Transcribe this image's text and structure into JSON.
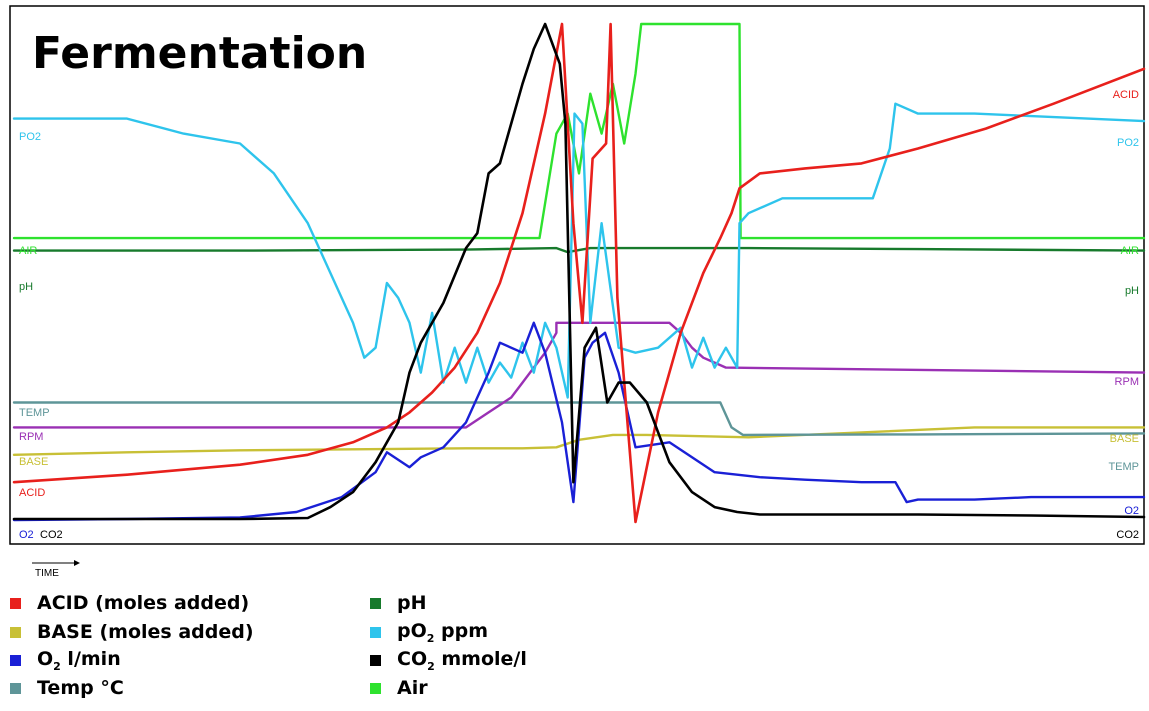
{
  "chart_data": {
    "type": "line",
    "title": "Fermentation",
    "xlabel": "TIME",
    "ylabel": "",
    "grid": false,
    "legend_position": "bottom",
    "xlim": [
      0,
      100
    ],
    "ylim": [
      0,
      100
    ],
    "series": [
      {
        "name": "ACID",
        "legend": "ACID (moles added)",
        "color": "#e8201c",
        "x": [
          0,
          10,
          20,
          26,
          30,
          33,
          35,
          37,
          39,
          41,
          43,
          45,
          47,
          48.5,
          49.5,
          50.3,
          51.2,
          52.4,
          52.8,
          53.4,
          55,
          57,
          59,
          61,
          62.5,
          63.5,
          64.2,
          66,
          70,
          75,
          80,
          86,
          92,
          100
        ],
        "y": [
          8,
          9.5,
          11.5,
          13.5,
          16,
          19,
          22,
          26,
          31,
          38,
          48,
          62,
          82,
          100,
          60,
          40,
          73,
          76,
          100,
          45,
          0,
          22,
          38,
          50,
          57,
          62,
          67,
          70,
          71,
          72,
          75,
          79,
          84,
          91
        ]
      },
      {
        "name": "BASE",
        "legend": "BASE (moles added)",
        "color": "#c8c036",
        "x": [
          0,
          10,
          20,
          30,
          40,
          45,
          48,
          50,
          53,
          56,
          65,
          75,
          85,
          100
        ],
        "y": [
          13.5,
          14,
          14.4,
          14.6,
          14.8,
          14.8,
          15,
          16.5,
          17.5,
          17.5,
          17,
          18,
          19,
          19
        ]
      },
      {
        "name": "O2",
        "legend": "O2 l/min",
        "color": "#1a20d6",
        "x": [
          0,
          10,
          20,
          25,
          29,
          32,
          33,
          35,
          36,
          38,
          40,
          42,
          43,
          45,
          46,
          47,
          48.5,
          49.5,
          50.5,
          51.2,
          52.3,
          53.5,
          55,
          58,
          62,
          66,
          70,
          75,
          78,
          79,
          80,
          85,
          90,
          100
        ],
        "y": [
          0.4,
          0.6,
          0.9,
          2,
          5,
          10,
          14,
          11,
          13,
          15,
          20,
          30,
          36,
          34,
          40,
          34,
          20,
          4,
          33,
          36,
          38,
          30,
          15,
          16,
          10,
          9,
          8.5,
          8,
          8,
          4,
          4.5,
          4.5,
          5,
          5
        ]
      },
      {
        "name": "TEMP",
        "legend": "Temp °C",
        "color": "#5e9598",
        "x": [
          0,
          20,
          40,
          50,
          55,
          60,
          62.5,
          63.5,
          64.5,
          80,
          100
        ],
        "y": [
          24,
          24,
          24,
          24,
          24,
          24,
          24,
          19,
          17.5,
          17.6,
          17.8
        ]
      },
      {
        "name": "RPM",
        "legend": "RPM",
        "color": "#9a30b4",
        "x": [
          0,
          40,
          42,
          44,
          45,
          46,
          47,
          48,
          48,
          58,
          59,
          60,
          61,
          62,
          63,
          100
        ],
        "y": [
          19,
          19,
          22,
          25,
          28,
          31,
          34,
          38,
          40,
          40,
          38,
          35,
          33,
          32,
          31,
          30
        ]
      },
      {
        "name": "pH",
        "legend": "pH",
        "color": "#177a2c",
        "x": [
          0,
          20,
          40,
          48,
          49,
          51,
          55,
          65,
          80,
          100
        ],
        "y": [
          54.5,
          54.5,
          54.7,
          55,
          54.2,
          55,
          55,
          55,
          54.8,
          54.5
        ]
      },
      {
        "name": "PO2",
        "legend": "pO2 ppm",
        "color": "#2ec4ec",
        "x": [
          0,
          10,
          15,
          20,
          23,
          26,
          28,
          30,
          31,
          32,
          33,
          34,
          35,
          36,
          37,
          38,
          39,
          40,
          41,
          42,
          43,
          44,
          45,
          46,
          47,
          48,
          49,
          49.6,
          50.3,
          51,
          52,
          53.5,
          55,
          57,
          59,
          60,
          61,
          62,
          63,
          64,
          64.2,
          65,
          68,
          73,
          76,
          77.5,
          78,
          80,
          85,
          90,
          100
        ],
        "y": [
          81,
          81,
          78,
          76,
          70,
          60,
          50,
          40,
          33,
          35,
          48,
          45,
          40,
          30,
          42,
          28,
          35,
          28,
          35,
          28,
          32,
          29,
          36,
          30,
          40,
          35,
          25,
          82,
          80,
          40,
          60,
          35,
          34,
          35,
          39,
          31,
          37,
          31,
          35,
          31,
          60,
          62,
          65,
          65,
          65,
          75,
          84,
          82,
          82,
          81.5,
          80.5
        ]
      },
      {
        "name": "CO2",
        "legend": "CO2 mmole/l",
        "color": "#000000",
        "x": [
          0,
          10,
          20,
          26,
          28,
          30,
          32,
          34,
          35,
          36,
          38,
          40,
          41,
          42,
          43,
          44,
          45,
          46,
          47,
          48.3,
          48.8,
          49.5,
          50.5,
          51.5,
          52.5,
          53.5,
          54.5,
          56,
          58,
          60,
          62,
          64,
          66,
          70,
          75,
          80,
          85,
          90,
          100
        ],
        "y": [
          0.6,
          0.6,
          0.6,
          0.8,
          3,
          6,
          12,
          20,
          30,
          36,
          44,
          55,
          58,
          70,
          72,
          80,
          88,
          95,
          100,
          92,
          80,
          8,
          35,
          39,
          24,
          28,
          28,
          24,
          12,
          6,
          3,
          2,
          1.5,
          1.5,
          1.5,
          1.5,
          1.4,
          1.3,
          1
        ]
      },
      {
        "name": "AIR",
        "legend": "Air",
        "color": "#2ee22e",
        "x": [
          0,
          20,
          40,
          46.5,
          47,
          48,
          49,
          50,
          51,
          52,
          53,
          54,
          55,
          55.5,
          55.6,
          64.2,
          64.3,
          65,
          80,
          100
        ],
        "y": [
          57,
          57,
          57,
          57,
          64,
          78,
          82,
          70,
          86,
          78,
          88,
          76,
          90,
          100,
          100,
          100,
          57,
          57,
          57,
          57
        ]
      }
    ],
    "series_labels": {
      "left": [
        "PO2",
        "AIR",
        "pH",
        "TEMP",
        "RPM",
        "BASE",
        "ACID",
        "O2",
        "CO2"
      ],
      "right": [
        "ACID",
        "PO2",
        "AIR",
        "pH",
        "RPM",
        "BASE",
        "TEMP",
        "O2",
        "CO2"
      ]
    }
  },
  "legend": {
    "items": [
      {
        "label": "ACID (moles added)",
        "sub": "",
        "after": "",
        "color": "#e8201c"
      },
      {
        "label": "BASE (moles added)",
        "sub": "",
        "after": "",
        "color": "#c8c036"
      },
      {
        "label": "O",
        "sub": "2",
        "after": " l/min",
        "color": "#1a20d6"
      },
      {
        "label": "Temp °C",
        "sub": "",
        "after": "",
        "color": "#5e9598"
      },
      {
        "label": "pH",
        "sub": "",
        "after": "",
        "color": "#177a2c"
      },
      {
        "label": "pO",
        "sub": "2",
        "after": " ppm",
        "color": "#2ec4ec"
      },
      {
        "label": "CO",
        "sub": "2",
        "after": " mmole/l",
        "color": "#000000"
      },
      {
        "label": "Air",
        "sub": "",
        "after": "",
        "color": "#2ee22e"
      }
    ]
  }
}
